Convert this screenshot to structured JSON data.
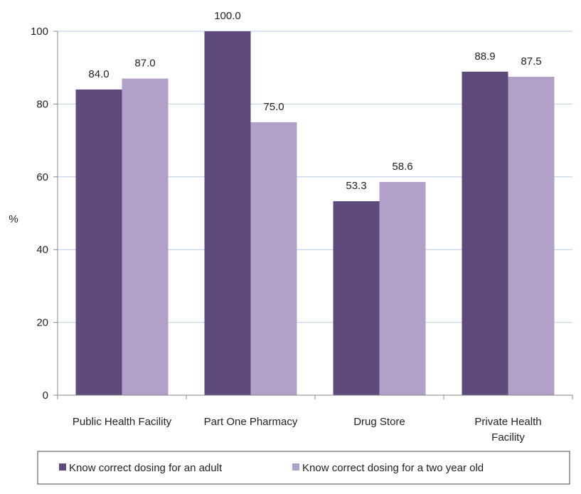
{
  "chart_data": {
    "type": "bar",
    "categories": [
      [
        "Public Health Facility"
      ],
      [
        "Part One Pharmacy"
      ],
      [
        "Drug Store"
      ],
      [
        "Private Health",
        "Facility"
      ]
    ],
    "series": [
      {
        "name": "Know correct dosing for an adult",
        "values": [
          84.0,
          100.0,
          53.3,
          88.9
        ],
        "color": "#5e4a7b"
      },
      {
        "name": "Know correct dosing for a two year old",
        "values": [
          87.0,
          75.0,
          58.6,
          87.5
        ],
        "color": "#b1a0c7"
      }
    ],
    "data_labels": [
      [
        "84.0",
        "100.0",
        "53.3",
        "88.9"
      ],
      [
        "87.0",
        "75.0",
        "58.6",
        "87.5"
      ]
    ],
    "title": "",
    "xlabel": "",
    "ylabel": "%",
    "ylim": [
      0,
      100
    ],
    "yticks": [
      "0",
      "20",
      "40",
      "60",
      "80",
      "100"
    ],
    "grid": true,
    "gridline_color": "#b9cde5",
    "legend_position": "bottom"
  }
}
